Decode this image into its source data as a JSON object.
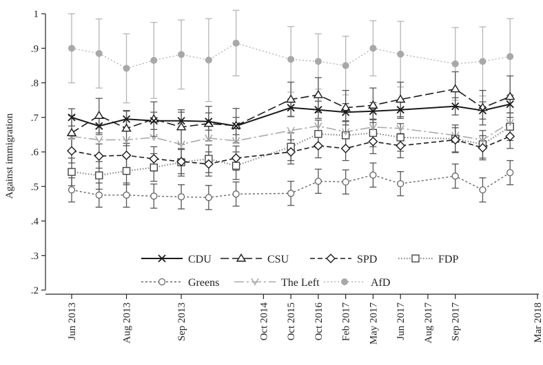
{
  "chart_data": {
    "type": "line",
    "ylabel": "Against immigration",
    "xlabel": "",
    "ylim": [
      0.2,
      1.0
    ],
    "y_ticks": [
      {
        "v": 0.2,
        "label": ".2"
      },
      {
        "v": 0.3,
        "label": ".3"
      },
      {
        "v": 0.4,
        "label": ".4"
      },
      {
        "v": 0.5,
        "label": ".5"
      },
      {
        "v": 0.6,
        "label": ".6"
      },
      {
        "v": 0.7,
        "label": ".7"
      },
      {
        "v": 0.8,
        "label": ".8"
      },
      {
        "v": 0.9,
        "label": ".9"
      },
      {
        "v": 1.0,
        "label": "1"
      }
    ],
    "x_ticks": [
      {
        "x": 0,
        "label": "Jun 2013"
      },
      {
        "x": 4,
        "label": "Aug 2013"
      },
      {
        "x": 8,
        "label": "Sep 2013"
      },
      {
        "x": 14,
        "label": "Oct 2014"
      },
      {
        "x": 16,
        "label": "Oct 2015"
      },
      {
        "x": 18,
        "label": "Oct 2016"
      },
      {
        "x": 20,
        "label": "Feb 2017"
      },
      {
        "x": 22,
        "label": "May 2017"
      },
      {
        "x": 24,
        "label": "Jun 2017"
      },
      {
        "x": 26,
        "label": "Aug 2017"
      },
      {
        "x": 28,
        "label": "Sep 2017"
      },
      {
        "x": 34,
        "label": "Mar 2018"
      }
    ],
    "x": [
      0,
      2,
      4,
      6,
      8,
      10,
      12,
      16,
      18,
      20,
      22,
      24,
      28,
      30,
      32
    ],
    "series": [
      {
        "name": "CDU",
        "marker": "x",
        "dash": "",
        "width": 2,
        "color": "#1a1a1a",
        "values": [
          0.7,
          0.675,
          0.695,
          0.69,
          0.69,
          0.688,
          0.675,
          0.728,
          0.722,
          0.715,
          0.718,
          0.722,
          0.732,
          0.72,
          0.738
        ],
        "err": [
          0.025,
          0.025,
          0.025,
          0.025,
          0.025,
          0.025,
          0.025,
          0.025,
          0.025,
          0.025,
          0.025,
          0.025,
          0.025,
          0.025,
          0.025
        ]
      },
      {
        "name": "CSU",
        "marker": "triangle",
        "dash": "12 5",
        "width": 1.6,
        "color": "#1a1a1a",
        "values": [
          0.655,
          0.705,
          0.668,
          0.695,
          0.672,
          0.682,
          0.676,
          0.752,
          0.765,
          0.728,
          0.735,
          0.752,
          0.782,
          0.728,
          0.76
        ],
        "err": [
          0.05,
          0.05,
          0.05,
          0.05,
          0.05,
          0.05,
          0.05,
          0.05,
          0.05,
          0.05,
          0.05,
          0.05,
          0.05,
          0.05,
          0.06
        ]
      },
      {
        "name": "SPD",
        "marker": "diamond",
        "dash": "7 4",
        "width": 1.6,
        "color": "#1a1a1a",
        "values": [
          0.603,
          0.588,
          0.59,
          0.58,
          0.572,
          0.565,
          0.582,
          0.6,
          0.618,
          0.61,
          0.63,
          0.618,
          0.635,
          0.612,
          0.645
        ],
        "err": [
          0.035,
          0.035,
          0.035,
          0.035,
          0.035,
          0.035,
          0.035,
          0.035,
          0.035,
          0.035,
          0.035,
          0.035,
          0.035,
          0.035,
          0.035
        ]
      },
      {
        "name": "FDP",
        "marker": "square",
        "dash": "1.5 2.5",
        "width": 2.2,
        "color": "#888888",
        "values": [
          0.542,
          0.532,
          0.545,
          0.555,
          0.57,
          0.58,
          0.56,
          0.615,
          0.652,
          0.648,
          0.655,
          0.642,
          0.638,
          0.622,
          0.673
        ],
        "err": [
          0.04,
          0.04,
          0.04,
          0.04,
          0.04,
          0.04,
          0.04,
          0.04,
          0.04,
          0.04,
          0.04,
          0.04,
          0.04,
          0.04,
          0.04
        ]
      },
      {
        "name": "Greens",
        "marker": "circle",
        "dash": "3 3",
        "width": 1.4,
        "color": "#666666",
        "values": [
          0.49,
          0.475,
          0.475,
          0.472,
          0.47,
          0.468,
          0.478,
          0.48,
          0.515,
          0.513,
          0.533,
          0.508,
          0.53,
          0.49,
          0.54
        ],
        "err": [
          0.035,
          0.035,
          0.035,
          0.035,
          0.035,
          0.035,
          0.035,
          0.035,
          0.035,
          0.035,
          0.035,
          0.035,
          0.035,
          0.035,
          0.035
        ]
      },
      {
        "name": "The Left",
        "marker": "v",
        "dash": "14 4 3 4",
        "width": 1.6,
        "color": "#aaaaaa",
        "values": [
          0.645,
          0.635,
          0.635,
          0.642,
          0.622,
          0.64,
          0.632,
          0.662,
          0.675,
          0.658,
          0.672,
          0.668,
          0.648,
          0.635,
          0.685
        ],
        "err": [
          0,
          0,
          0,
          0,
          0,
          0,
          0,
          0,
          0,
          0,
          0,
          0,
          0,
          0,
          0
        ]
      },
      {
        "name": "AfD",
        "marker": "dot",
        "dash": "2 3",
        "width": 1.2,
        "color": "#a8a8a8",
        "values": [
          0.9,
          0.885,
          0.842,
          0.865,
          0.882,
          0.866,
          0.915,
          0.868,
          0.862,
          0.85,
          0.9,
          0.883,
          0.855,
          0.862,
          0.876
        ],
        "err": [
          0.1,
          0.1,
          0.1,
          0.11,
          0.1,
          0.12,
          0.095,
          0.095,
          0.08,
          0.085,
          0.08,
          0.095,
          0.105,
          0.1,
          0.11
        ]
      }
    ],
    "legend_placement": "bottom-center, two rows inside plot",
    "grid": false,
    "colors": {
      "axis": "#222222",
      "text": "#222222"
    }
  }
}
